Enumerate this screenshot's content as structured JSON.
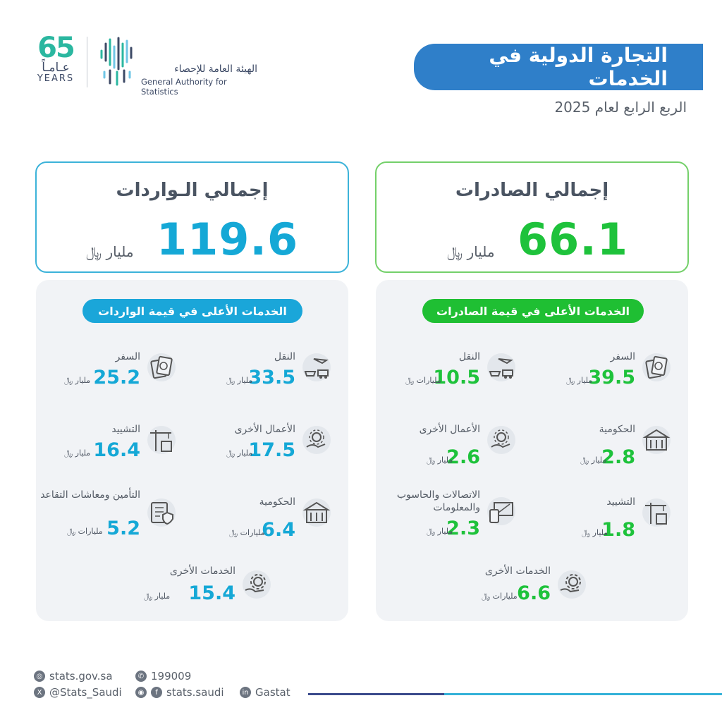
{
  "logo": {
    "anniv_number": "65",
    "anniv_ar": "عـامـاً",
    "anniv_en": "YEARS",
    "org_ar": "الهيئة العامة للإحصاء",
    "org_en": "General Authority for Statistics"
  },
  "header": {
    "title": "التجارة الدولية في الخدمات",
    "subtitle": "الربع الرابع لعام 2025"
  },
  "exports_total": {
    "label": "إجمالي الصادرات",
    "value": "66.1",
    "unit": "مليار ﷼"
  },
  "imports_total": {
    "label": "إجمالي الـواردات",
    "value": "119.6",
    "unit": "مليار ﷼"
  },
  "exports_panel": {
    "heading": "الخدمات الأعلى في قيمة الصادرات",
    "items": [
      {
        "name": "السفر",
        "value": "39.5",
        "unit": "مليار ﷼",
        "icon": "passport-icon"
      },
      {
        "name": "النقل",
        "value": "10.5",
        "unit": "مليارات ﷼",
        "icon": "transport-icon"
      },
      {
        "name": "الحكومية",
        "value": "2.8",
        "unit": "مليار ﷼",
        "icon": "government-building-icon"
      },
      {
        "name": "الأعمال الأخرى",
        "value": "2.6",
        "unit": "مليار ﷼",
        "icon": "business-gear-icon"
      },
      {
        "name": "التشييد",
        "value": "1.8",
        "unit": "مليار ﷼",
        "icon": "construction-crane-icon"
      },
      {
        "name": "الاتصالات والحاسوب والمعلومات",
        "value": "2.3",
        "unit": "مليار ﷼",
        "icon": "computer-icon"
      },
      {
        "name": "الخدمات الأخرى",
        "value": "6.6",
        "unit": "مليارات ﷼",
        "icon": "services-gear-icon"
      }
    ]
  },
  "imports_panel": {
    "heading": "الخدمات الأعلى في قيمة الواردات",
    "items": [
      {
        "name": "النقل",
        "value": "33.5",
        "unit": "مليار ﷼",
        "icon": "transport-icon"
      },
      {
        "name": "السفر",
        "value": "25.2",
        "unit": "مليار ﷼",
        "icon": "passport-icon"
      },
      {
        "name": "الأعمال الأخرى",
        "value": "17.5",
        "unit": "مليار ﷼",
        "icon": "business-gear-icon"
      },
      {
        "name": "التشييد",
        "value": "16.4",
        "unit": "مليار ﷼",
        "icon": "construction-crane-icon"
      },
      {
        "name": "الحكومية",
        "value": "6.4",
        "unit": "مليارات ﷼",
        "icon": "government-building-icon"
      },
      {
        "name": "التأمين ومعاشات التقاعد",
        "value": "5.2",
        "unit": "مليارات ﷼",
        "icon": "insurance-document-icon"
      },
      {
        "name": "الخدمات الأخرى",
        "value": "15.4",
        "unit": "مليار ﷼",
        "icon": "services-gear-icon"
      }
    ]
  },
  "footer": {
    "website": "stats.gov.sa",
    "phone": "199009",
    "twitter": "@Stats_Saudi",
    "social": "stats.saudi",
    "linkedin": "Gastat"
  },
  "colors": {
    "export_green": "#1ec23b",
    "import_blue": "#15a8d6",
    "header_blue": "#2f7fc9"
  }
}
